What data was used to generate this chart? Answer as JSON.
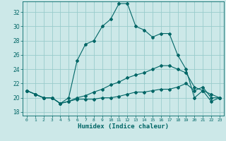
{
  "xlabel": "Humidex (Indice chaleur)",
  "ylabel": "",
  "xlim": [
    -0.5,
    23.5
  ],
  "ylim": [
    17.5,
    33.5
  ],
  "xticks": [
    0,
    1,
    2,
    3,
    4,
    5,
    6,
    7,
    8,
    9,
    10,
    11,
    12,
    13,
    14,
    15,
    16,
    17,
    18,
    19,
    20,
    21,
    22,
    23
  ],
  "yticks": [
    18,
    20,
    22,
    24,
    26,
    28,
    30,
    32
  ],
  "background_color": "#cce8e8",
  "grid_color": "#99cccc",
  "line_color": "#006666",
  "line1_x": [
    0,
    1,
    2,
    3,
    4,
    5,
    6,
    7,
    8,
    9,
    10,
    11,
    12,
    13,
    14,
    15,
    16,
    17,
    18,
    19,
    20,
    21,
    22,
    23
  ],
  "line1_y": [
    21.0,
    20.5,
    20.0,
    20.0,
    19.2,
    20.0,
    25.2,
    27.5,
    28.0,
    30.0,
    31.0,
    33.2,
    33.2,
    30.0,
    29.5,
    28.5,
    29.0,
    29.0,
    26.0,
    24.0,
    20.0,
    21.0,
    19.5,
    20.0
  ],
  "line2_x": [
    0,
    1,
    2,
    3,
    4,
    5,
    6,
    7,
    8,
    9,
    10,
    11,
    12,
    13,
    14,
    15,
    16,
    17,
    18,
    19,
    20,
    21,
    22,
    23
  ],
  "line2_y": [
    21.0,
    20.5,
    20.0,
    20.0,
    19.2,
    19.5,
    20.0,
    20.3,
    20.8,
    21.2,
    21.8,
    22.2,
    22.8,
    23.2,
    23.5,
    24.0,
    24.5,
    24.5,
    24.0,
    23.5,
    21.5,
    21.0,
    20.5,
    20.0
  ],
  "line3_x": [
    0,
    1,
    2,
    3,
    4,
    5,
    6,
    7,
    8,
    9,
    10,
    11,
    12,
    13,
    14,
    15,
    16,
    17,
    18,
    19,
    20,
    21,
    22,
    23
  ],
  "line3_y": [
    21.0,
    20.5,
    20.0,
    20.0,
    19.2,
    19.5,
    19.8,
    19.8,
    19.8,
    20.0,
    20.0,
    20.2,
    20.5,
    20.8,
    20.8,
    21.0,
    21.2,
    21.2,
    21.5,
    22.0,
    21.0,
    21.5,
    20.0,
    20.0
  ]
}
